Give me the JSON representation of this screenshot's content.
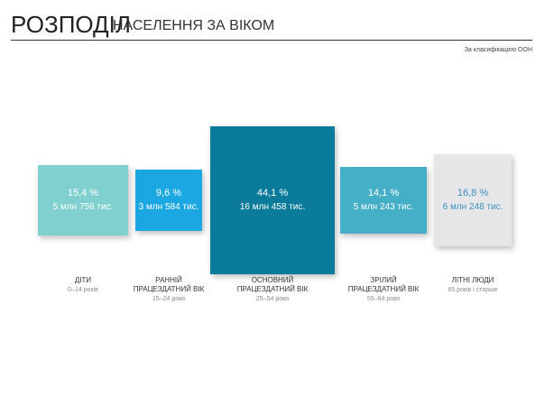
{
  "chart_data": {
    "type": "area-boxes",
    "title": "РОЗПОДІЛ",
    "title_rest": "НАСЕЛЕННЯ ЗА ВІКОМ",
    "note": "За класифікацією ООН",
    "categories": [
      "ДІТИ",
      "РАННІЙ\nПРАЦЕЗДАТНИЙ ВІК",
      "ОСНОВНИЙ\nПРАЦЕЗДАТНИЙ ВІК",
      "ЗРІЛИЙ\nПРАЦЕЗДАТНИЙ ВІК",
      "ЛІТНІ ЛЮДИ"
    ],
    "subtitles": [
      "0–14 років",
      "15–24 роки",
      "25–54 роки",
      "55–64 роки",
      "65 років і старше"
    ],
    "values": [
      15.4,
      9.6,
      44.1,
      14.1,
      16.8
    ],
    "value_labels": [
      "15,4 %",
      "9,6 %",
      "44,1 %",
      "14,1 %",
      "16,8 %"
    ],
    "count_labels": [
      "5 млн 756 тис.",
      "3 млн 584 тис.",
      "16 млн 458 тис.",
      "5 млн 243 тис.",
      "6 млн 248 тис."
    ],
    "colors": [
      "#80d0cf",
      "#1ba7e1",
      "#0b7b9b",
      "#45afc7",
      "#e6e6e8"
    ],
    "text_colors": [
      "#ffffff",
      "#ffffff",
      "#ffffff",
      "#ffffff",
      "#3a8fc0"
    ]
  }
}
